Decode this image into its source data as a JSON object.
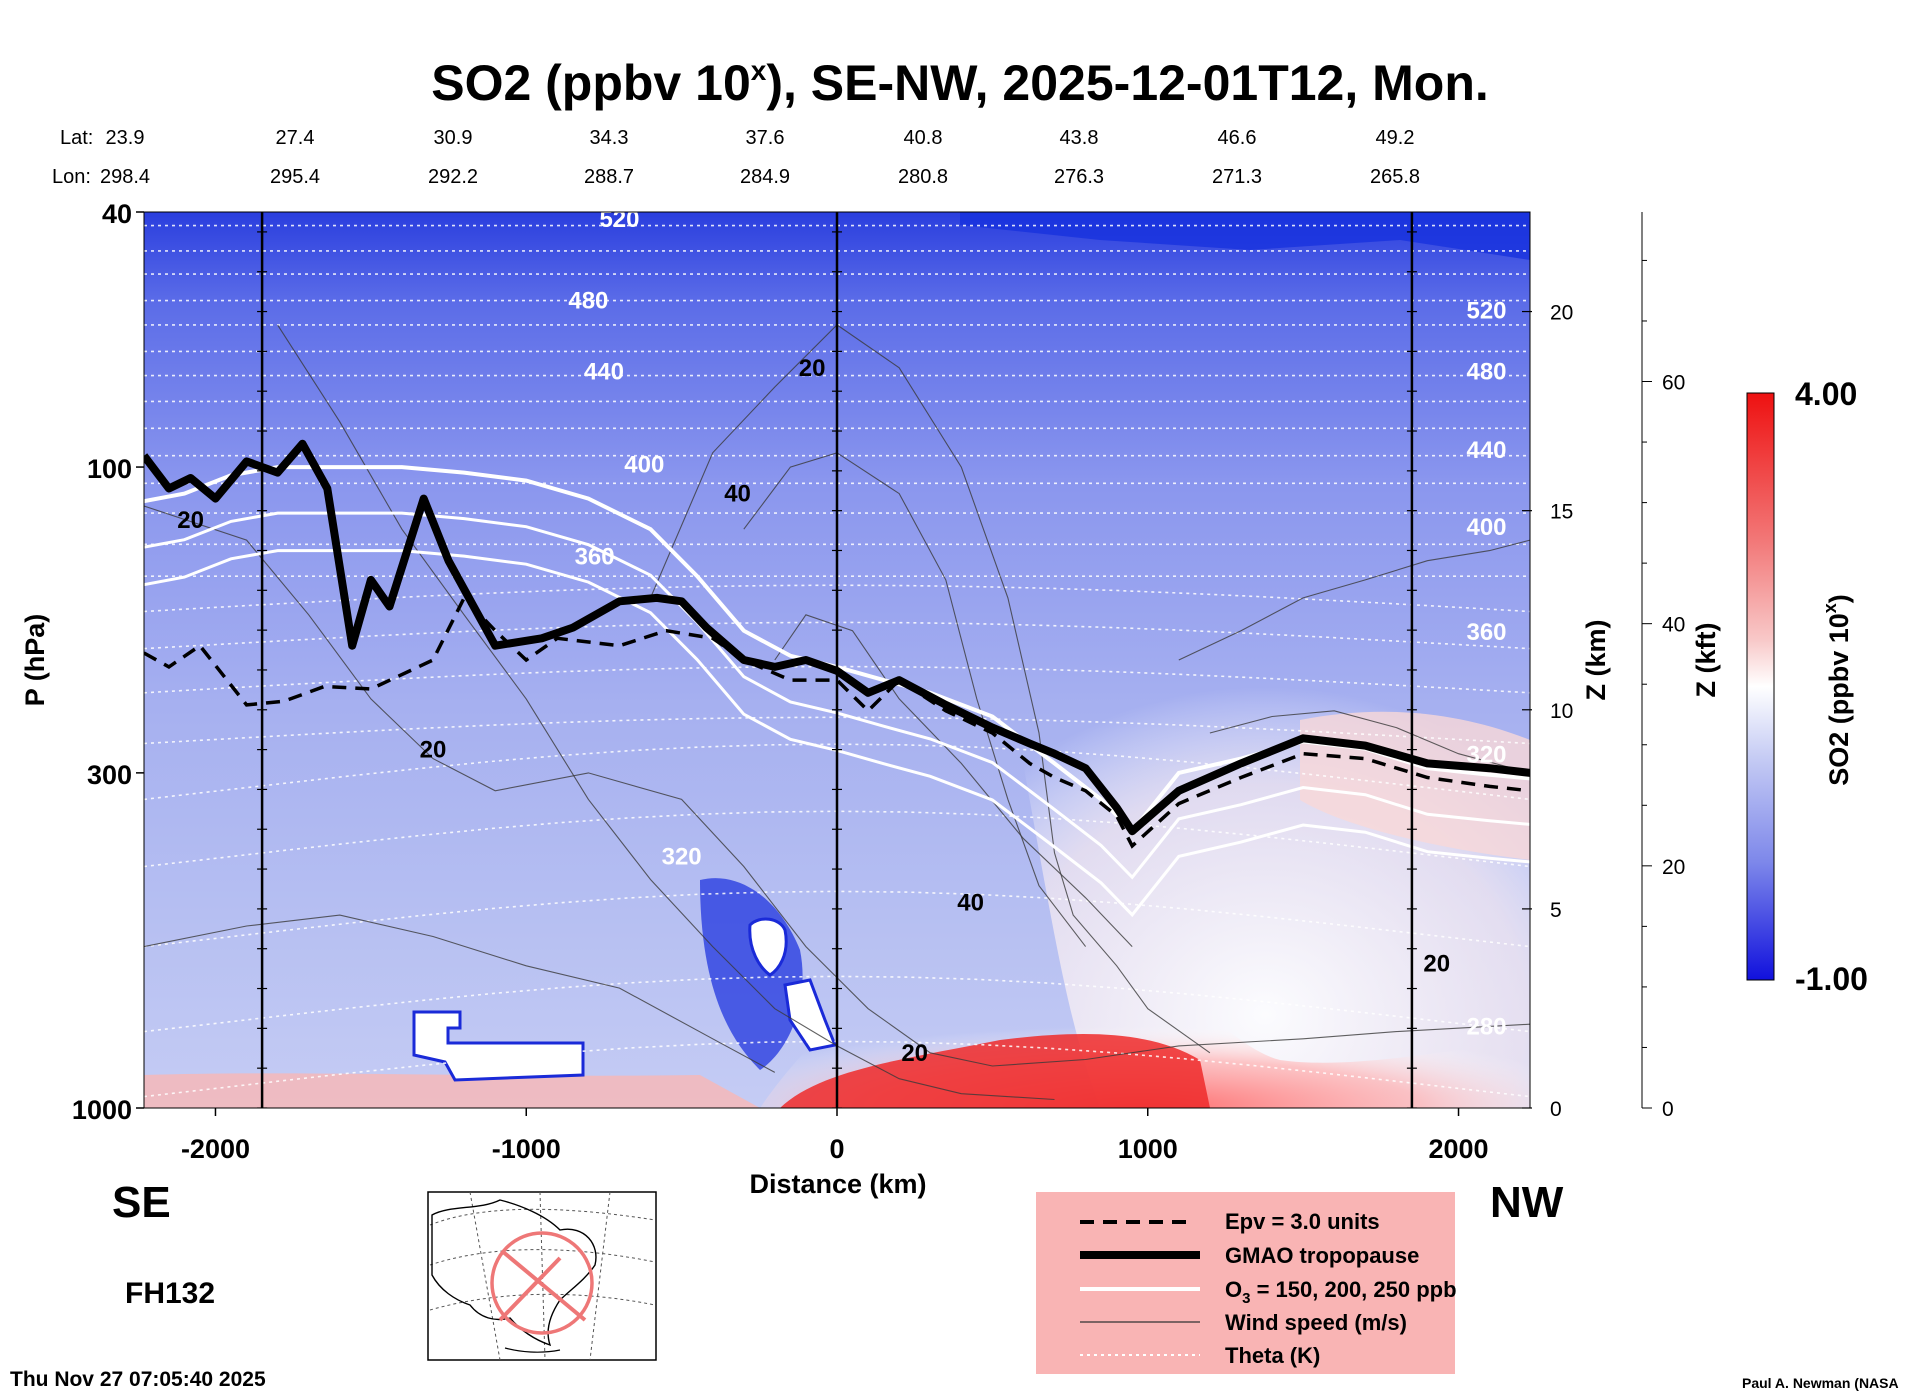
{
  "chart_data": {
    "type": "heatmap",
    "title_main": "SO2 (ppbv 10",
    "title_sup": "x",
    "title_rest": "), SE-NW, 2025-12-01T12, Mon.",
    "lat_label": "Lat:",
    "lon_label": "Lon:",
    "lat": [
      "23.9",
      "27.4",
      "30.9",
      "34.3",
      "37.6",
      "40.8",
      "43.8",
      "46.6",
      "49.2"
    ],
    "lon": [
      "298.4",
      "295.4",
      "292.2",
      "288.7",
      "284.9",
      "280.8",
      "276.3",
      "271.3",
      "265.8"
    ],
    "xlabel": "Distance (km)",
    "xlim": [
      -2230,
      2230
    ],
    "xticks": [
      -2000,
      -1000,
      0,
      1000,
      2000
    ],
    "xtick_labels": [
      "-2000",
      "-1000",
      "0",
      "1000",
      "2000"
    ],
    "ylabel": "P (hPa)",
    "ylim": [
      1000,
      40
    ],
    "yticks": [
      1000,
      300,
      100,
      40
    ],
    "ytick_labels": [
      "1000",
      "300",
      "100",
      "40"
    ],
    "z_km_label": "Z (km)",
    "z_km_ticks": [
      0,
      5,
      10,
      15,
      20
    ],
    "z_kft_label": "Z (kft)",
    "z_kft_ticks": [
      0,
      20,
      40,
      60
    ],
    "vertical_markers_km": [
      -1850,
      0,
      1850
    ],
    "colorbar": {
      "label_main": "SO2 (ppbv 10",
      "label_sup": "x",
      "label_rest": ")",
      "max_label": "4.00",
      "min_label": "-1.00",
      "high_color": "#ee1111",
      "mid_color": "#ffffff",
      "low_color": "#1111dd"
    },
    "theta_labels": [
      {
        "text": "520",
        "x": -700,
        "p": 41
      },
      {
        "text": "480",
        "x": -800,
        "p": 55
      },
      {
        "text": "440",
        "x": -750,
        "p": 71
      },
      {
        "text": "400",
        "x": -620,
        "p": 99
      },
      {
        "text": "360",
        "x": -780,
        "p": 138
      },
      {
        "text": "320",
        "x": -500,
        "p": 405
      },
      {
        "text": "520",
        "x": 2090,
        "p": 57
      },
      {
        "text": "480",
        "x": 2090,
        "p": 71
      },
      {
        "text": "440",
        "x": 2090,
        "p": 94
      },
      {
        "text": "400",
        "x": 2090,
        "p": 124
      },
      {
        "text": "360",
        "x": 2090,
        "p": 181
      },
      {
        "text": "320",
        "x": 2090,
        "p": 281
      },
      {
        "text": "280",
        "x": 2090,
        "p": 746
      }
    ],
    "wind_labels": [
      {
        "text": "20",
        "x": -2080,
        "p": 121
      },
      {
        "text": "20",
        "x": -1300,
        "p": 276
      },
      {
        "text": "20",
        "x": -80,
        "p": 70
      },
      {
        "text": "40",
        "x": -320,
        "p": 110
      },
      {
        "text": "40",
        "x": 430,
        "p": 478
      },
      {
        "text": "20",
        "x": 250,
        "p": 820
      },
      {
        "text": "20",
        "x": 1930,
        "p": 595
      }
    ],
    "tropopause": [
      [
        -2230,
        96
      ],
      [
        -2150,
        108
      ],
      [
        -2080,
        104
      ],
      [
        -2000,
        112
      ],
      [
        -1900,
        98
      ],
      [
        -1800,
        102
      ],
      [
        -1720,
        92
      ],
      [
        -1640,
        108
      ],
      [
        -1560,
        190
      ],
      [
        -1500,
        150
      ],
      [
        -1440,
        165
      ],
      [
        -1330,
        112
      ],
      [
        -1250,
        140
      ],
      [
        -1100,
        190
      ],
      [
        -950,
        185
      ],
      [
        -850,
        178
      ],
      [
        -700,
        162
      ],
      [
        -580,
        160
      ],
      [
        -500,
        162
      ],
      [
        -420,
        178
      ],
      [
        -300,
        200
      ],
      [
        -200,
        205
      ],
      [
        -100,
        200
      ],
      [
        0,
        208
      ],
      [
        100,
        225
      ],
      [
        200,
        215
      ],
      [
        350,
        235
      ],
      [
        500,
        255
      ],
      [
        620,
        270
      ],
      [
        700,
        280
      ],
      [
        800,
        295
      ],
      [
        900,
        340
      ],
      [
        950,
        370
      ],
      [
        1100,
        320
      ],
      [
        1300,
        290
      ],
      [
        1500,
        265
      ],
      [
        1700,
        272
      ],
      [
        1900,
        290
      ],
      [
        2100,
        295
      ],
      [
        2230,
        300
      ]
    ],
    "epv": [
      [
        -2230,
        195
      ],
      [
        -2150,
        205
      ],
      [
        -2050,
        190
      ],
      [
        -1900,
        235
      ],
      [
        -1780,
        232
      ],
      [
        -1650,
        220
      ],
      [
        -1500,
        222
      ],
      [
        -1300,
        200
      ],
      [
        -1200,
        160
      ],
      [
        -1100,
        180
      ],
      [
        -1000,
        200
      ],
      [
        -900,
        185
      ],
      [
        -700,
        190
      ],
      [
        -550,
        180
      ],
      [
        -400,
        185
      ],
      [
        -300,
        200
      ],
      [
        -150,
        215
      ],
      [
        0,
        215
      ],
      [
        100,
        240
      ],
      [
        200,
        215
      ],
      [
        350,
        240
      ],
      [
        500,
        260
      ],
      [
        620,
        290
      ],
      [
        700,
        305
      ],
      [
        800,
        320
      ],
      [
        900,
        350
      ],
      [
        950,
        390
      ],
      [
        1100,
        335
      ],
      [
        1300,
        305
      ],
      [
        1500,
        280
      ],
      [
        1700,
        285
      ],
      [
        1900,
        305
      ],
      [
        2100,
        315
      ],
      [
        2230,
        320
      ]
    ],
    "ozone": [
      [
        -2230,
        113
      ],
      [
        -2100,
        110
      ],
      [
        -1950,
        103
      ],
      [
        -1800,
        100
      ],
      [
        -1600,
        100
      ],
      [
        -1400,
        100
      ],
      [
        -1200,
        102
      ],
      [
        -1000,
        105
      ],
      [
        -800,
        112
      ],
      [
        -600,
        125
      ],
      [
        -450,
        148
      ],
      [
        -300,
        180
      ],
      [
        -150,
        197
      ],
      [
        0,
        205
      ],
      [
        150,
        215
      ],
      [
        300,
        225
      ],
      [
        500,
        245
      ],
      [
        700,
        290
      ],
      [
        850,
        330
      ],
      [
        950,
        370
      ],
      [
        1100,
        300
      ],
      [
        1300,
        285
      ],
      [
        1500,
        268
      ],
      [
        1700,
        275
      ],
      [
        1900,
        295
      ],
      [
        2100,
        302
      ],
      [
        2230,
        306
      ]
    ]
  },
  "legend": {
    "epv": "Epv = 3.0 units",
    "tropopause": "GMAO tropopause",
    "ozone_pre": "O",
    "ozone_sub": "3",
    "ozone_post": " = 150, 200, 250 ppb",
    "wind": "Wind speed (m/s)",
    "theta": "Theta (K)"
  },
  "labels": {
    "se": "SE",
    "nw": "NW",
    "forecast_hour": "FH132",
    "timestamp": "Thu Nov 27 07:05:40 2025",
    "credit": "Paul A. Newman (NASA"
  },
  "inset_map": {
    "route_color": "#ee7777",
    "description_icon": "globe-map-icon"
  }
}
